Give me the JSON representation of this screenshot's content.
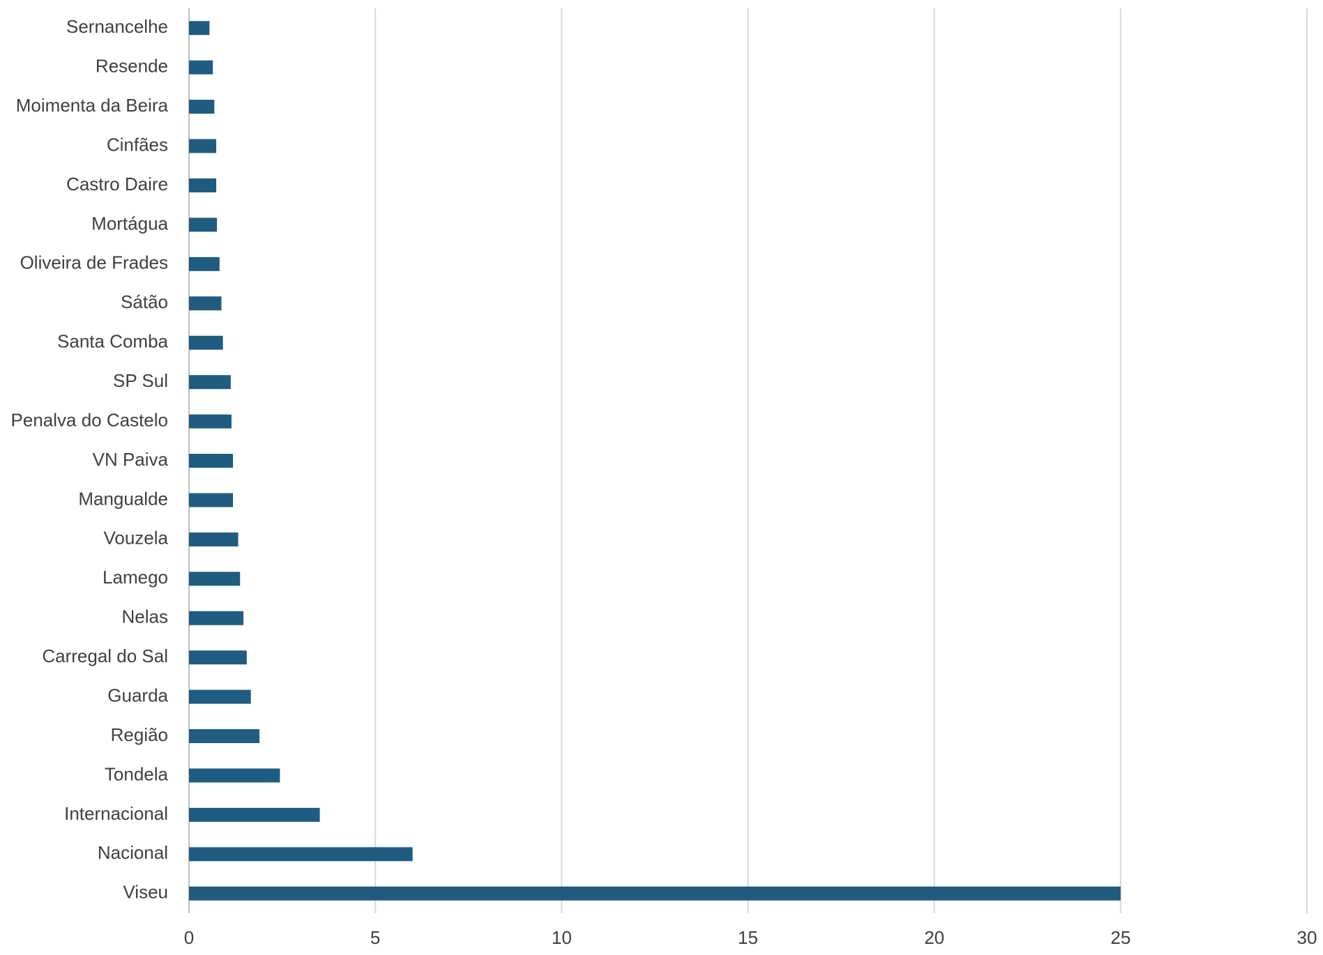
{
  "chart_data": {
    "type": "barh",
    "categories": [
      "Sernancelhe",
      "Resende",
      "Moimenta da Beira",
      "Cinfães",
      "Castro Daire",
      "Mortágua",
      "Oliveira de Frades",
      "Sátão",
      "Santa Comba",
      "SP Sul",
      "Penalva do Castelo",
      "VN Paiva",
      "Mangualde",
      "Vouzela",
      "Lamego",
      "Nelas",
      "Carregal do Sal",
      "Guarda",
      "Região",
      "Tondela",
      "Internacional",
      "Nacional",
      "Viseu"
    ],
    "values": [
      0.55,
      0.64,
      0.68,
      0.73,
      0.73,
      0.75,
      0.82,
      0.87,
      0.91,
      1.12,
      1.14,
      1.18,
      1.18,
      1.32,
      1.37,
      1.46,
      1.55,
      1.66,
      1.89,
      2.44,
      3.51,
      6,
      25
    ],
    "color": "#1f5c80",
    "xlim": [
      0,
      30
    ],
    "xticks": [
      0,
      5,
      10,
      15,
      20,
      25,
      30
    ],
    "grid": true
  }
}
